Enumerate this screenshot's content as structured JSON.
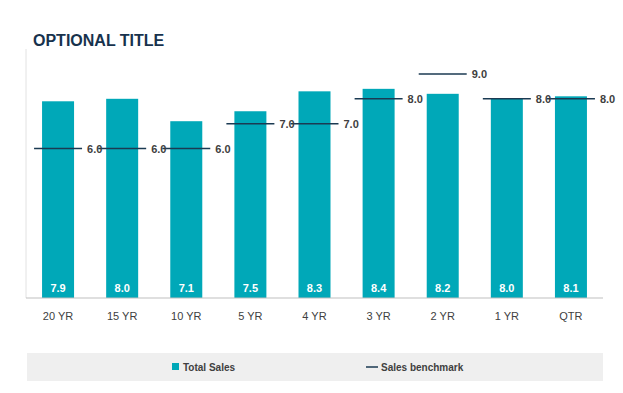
{
  "chart_data": {
    "type": "bar",
    "title": "OPTIONAL TITLE",
    "categories": [
      "20 YR",
      "15 YR",
      "10 YR",
      "5 YR",
      "4 YR",
      "3 YR",
      "2 YR",
      "1 YR",
      "QTR"
    ],
    "series": [
      {
        "name": "Total Sales",
        "type": "bar",
        "color": "#00a8b8",
        "values": [
          7.9,
          8.0,
          7.1,
          7.5,
          8.3,
          8.4,
          8.2,
          8.0,
          8.1
        ],
        "value_labels": [
          "7.9",
          "8.0",
          "7.1",
          "7.5",
          "8.3",
          "8.4",
          "8.2",
          "8.0",
          "8.1"
        ]
      },
      {
        "name": "Sales benchmark",
        "type": "line",
        "line_style": "none",
        "marker": "dash",
        "color": "#1b3a52",
        "values": [
          6,
          6,
          6,
          7,
          7,
          8,
          9,
          8,
          8
        ],
        "value_labels": [
          "6.0",
          "6.0",
          "6.0",
          "7.0",
          "7.0",
          "8.0",
          "9.0",
          "8.0",
          "8.0"
        ]
      }
    ],
    "ylim": [
      0,
      10
    ],
    "tick_labels": "x",
    "data_labels": true,
    "legend": "bottom"
  }
}
